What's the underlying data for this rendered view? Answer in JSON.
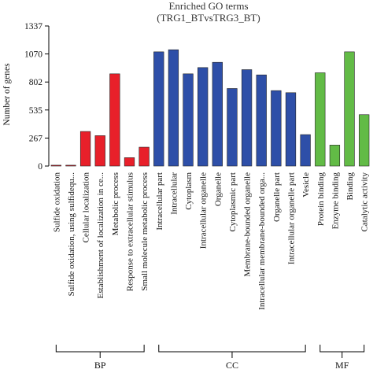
{
  "chart_data": {
    "type": "bar",
    "title": "Enriched GO terms",
    "subtitle": "(TRG1_BTvsTRG3_BT)",
    "ylabel": "Number of genes",
    "xlabel": "",
    "ylim": [
      0,
      1337
    ],
    "yticks": [
      0,
      267,
      535,
      802,
      1070,
      1337
    ],
    "grid": false,
    "legend": "none",
    "categories": [
      "Sulfide oxidation",
      "Sulfide oxidation, using sulfidequ...",
      "Cellular localization",
      "Establishment of localization in ce...",
      "Metabolic process",
      "Response to extracellular stimulus",
      "Small molecule metabolic process",
      "Intracellular part",
      "Intracellular",
      "Cytoplasm",
      "Intracellular organelle",
      "Organelle",
      "Cytoplasmic part",
      "Membrane-bounded organelle",
      "Intracellular membrane-bounded orga...",
      "Organelle part",
      "Intracellular organelle part",
      "Vesicle",
      "Protein binding",
      "Enzyme binding",
      "Binding",
      "Catalytic activity"
    ],
    "values": [
      8,
      8,
      330,
      290,
      880,
      80,
      180,
      1090,
      1110,
      880,
      940,
      990,
      740,
      920,
      870,
      720,
      700,
      300,
      890,
      200,
      1090,
      490
    ],
    "groups": [
      {
        "name": "BP",
        "start": 0,
        "end": 6,
        "color": "#e8202a"
      },
      {
        "name": "CC",
        "start": 7,
        "end": 17,
        "color": "#2e4fa8"
      },
      {
        "name": "MF",
        "start": 18,
        "end": 21,
        "color": "#62bb46"
      }
    ]
  }
}
